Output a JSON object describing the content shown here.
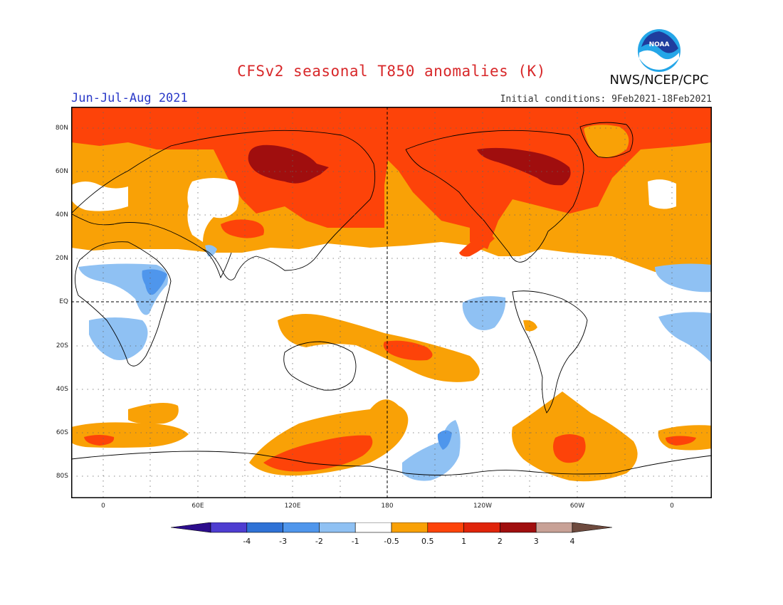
{
  "header": {
    "title": "CFSv2 seasonal T850 anomalies (K)",
    "season": "Jun-Jul-Aug 2021",
    "initial_conditions": "Initial conditions: 9Feb2021-18Feb2021",
    "org": "NWS/NCEP/CPC",
    "logo_text": "NOAA"
  },
  "map": {
    "lat_labels": [
      "80N",
      "60N",
      "40N",
      "20N",
      "EQ",
      "20S",
      "40S",
      "60S",
      "80S"
    ],
    "lon_labels": [
      "0",
      "60E",
      "120E",
      "180",
      "120W",
      "60W",
      "0"
    ],
    "colors": {
      "ocean_land": "#ffffff",
      "neg4": "#2c0d8c",
      "neg3": "#4e3dd1",
      "neg2": "#2f72d6",
      "neg1": "#4f96ec",
      "neg05": "#8fc1f3",
      "pos05": "#f9a106",
      "pos1": "#fd4309",
      "pos2": "#e0240a",
      "pos3": "#a00e0e",
      "pos4": "#c8a196"
    }
  },
  "colorbar": {
    "labels": [
      "-4",
      "-3",
      "-2",
      "-1",
      "-0.5",
      "0.5",
      "1",
      "2",
      "3",
      "4"
    ],
    "colors": [
      "#2c0d8c",
      "#4e3dd1",
      "#2f72d6",
      "#4f96ec",
      "#8fc1f3",
      "#ffffff",
      "#f9a106",
      "#fd4309",
      "#e0240a",
      "#a00e0e",
      "#c8a196",
      "#6e4a3e"
    ]
  }
}
